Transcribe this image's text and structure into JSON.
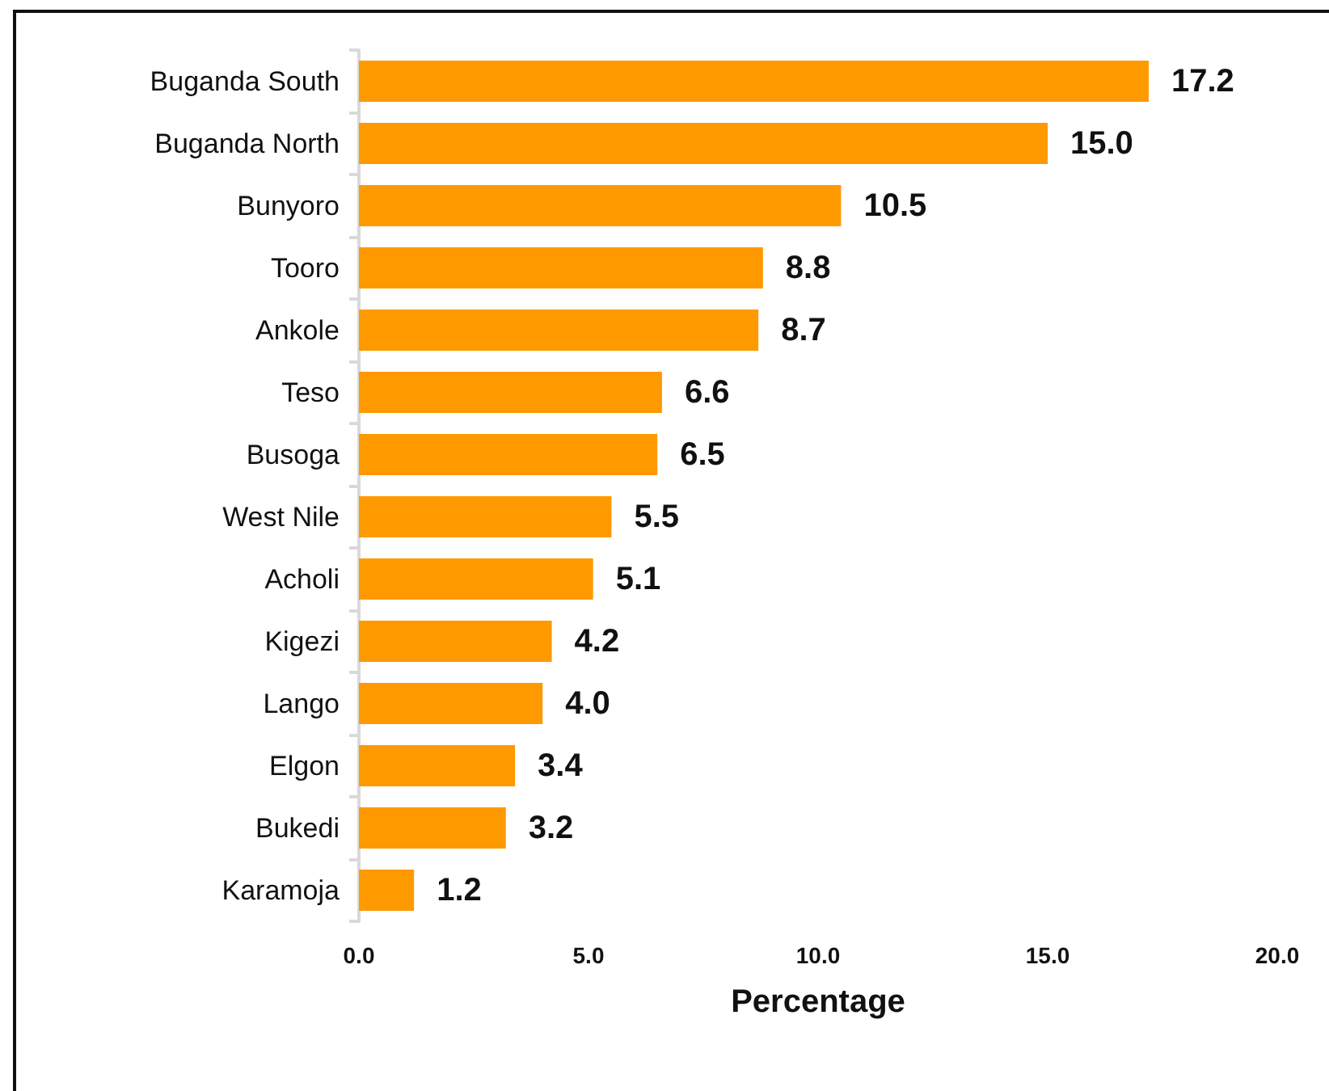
{
  "chart_data": {
    "type": "bar",
    "orientation": "horizontal",
    "categories": [
      "Buganda South",
      "Buganda North",
      "Bunyoro",
      "Tooro",
      "Ankole",
      "Teso",
      "Busoga",
      "West Nile",
      "Acholi",
      "Kigezi",
      "Lango",
      "Elgon",
      "Bukedi",
      "Karamoja"
    ],
    "values": [
      17.2,
      15.0,
      10.5,
      8.8,
      8.7,
      6.6,
      6.5,
      5.5,
      5.1,
      4.2,
      4.0,
      3.4,
      3.2,
      1.2
    ],
    "value_labels": [
      "17.2",
      "15.0",
      "10.5",
      "8.8",
      "8.7",
      "6.6",
      "6.5",
      "5.5",
      "5.1",
      "4.2",
      "4.0",
      "3.4",
      "3.2",
      "1.2"
    ],
    "color": "#ff9900",
    "xlabel": "Percentage",
    "xlim": [
      0,
      20
    ],
    "xticks": [
      {
        "value": 0,
        "label": "0.0"
      },
      {
        "value": 5,
        "label": "5.0"
      },
      {
        "value": 10,
        "label": "10.0"
      },
      {
        "value": 15,
        "label": "15.0"
      },
      {
        "value": 20,
        "label": "20.0"
      }
    ],
    "grid": false
  }
}
